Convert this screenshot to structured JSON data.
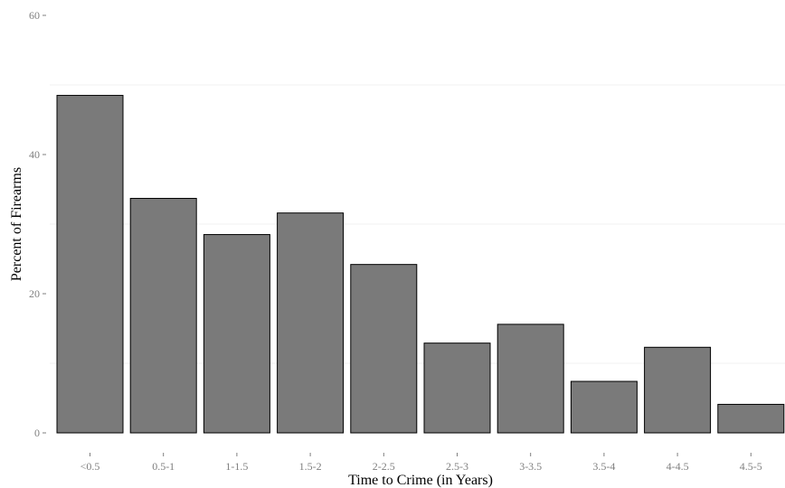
{
  "chart_data": {
    "type": "bar",
    "title": "",
    "xlabel": "Time to Crime (in Years)",
    "ylabel": "Percent of Firearms",
    "categories": [
      "<0.5",
      "0.5-1",
      "1-1.5",
      "1.5-2",
      "2-2.5",
      "2.5-3",
      "3-3.5",
      "3.5-4",
      "4-4.5",
      "4.5-5"
    ],
    "values": [
      48.5,
      33.7,
      28.5,
      31.6,
      24.2,
      12.9,
      15.6,
      7.4,
      12.3,
      4.1
    ],
    "yticks": [
      "0",
      "20",
      "40",
      "60"
    ],
    "ytick_values": [
      0,
      20,
      40,
      60
    ],
    "ylim": [
      0,
      60
    ],
    "grid": true,
    "legend": "none",
    "colors": {
      "bar_fill": "#7a7a7a",
      "bar_stroke": "#000000",
      "grid": "#f2f2f2",
      "tick_text": "#7f7f7f"
    }
  }
}
